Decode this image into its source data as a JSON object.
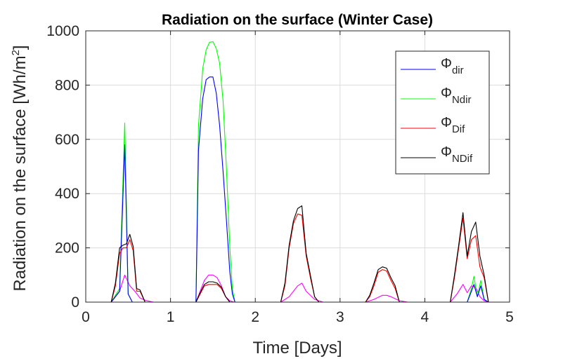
{
  "chart_data": {
    "type": "line",
    "title": "Radiation on the surface (Winter Case)",
    "xlabel": "Time [Days]",
    "ylabel_main": "Radiation on the surface [Wh/m",
    "ylabel_sup": "2",
    "ylabel_end": "]",
    "xlim": [
      0,
      5
    ],
    "ylim": [
      0,
      1000
    ],
    "xticks": [
      0,
      1,
      2,
      3,
      4,
      5
    ],
    "yticks": [
      0,
      200,
      400,
      600,
      800,
      1000
    ],
    "grid": true,
    "legend_position": "top-right",
    "series": [
      {
        "symbol": "Φ",
        "sub": "dir",
        "color": "#0000ff",
        "in_legend": true,
        "x": [
          0,
          0.3,
          0.4,
          0.46,
          0.5,
          0.55,
          0.6,
          1.3,
          1.33,
          1.38,
          1.42,
          1.46,
          1.5,
          1.54,
          1.58,
          1.62,
          1.66,
          1.7,
          1.73,
          1.76,
          4.5,
          4.55,
          4.58,
          4.62,
          4.66,
          4.7,
          4.75,
          5
        ],
        "y": [
          0,
          0,
          40,
          580,
          30,
          0,
          0,
          0,
          560,
          750,
          820,
          830,
          830,
          770,
          650,
          480,
          300,
          110,
          30,
          0,
          0,
          40,
          65,
          20,
          60,
          10,
          0,
          0
        ]
      },
      {
        "symbol": "Φ",
        "sub": "Ndir",
        "color": "#00ff00",
        "in_legend": true,
        "x": [
          0,
          0.3,
          0.4,
          0.46,
          0.5,
          0.55,
          0.6,
          1.3,
          1.33,
          1.38,
          1.42,
          1.46,
          1.5,
          1.54,
          1.58,
          1.62,
          1.66,
          1.7,
          1.73,
          1.76,
          4.5,
          4.55,
          4.58,
          4.62,
          4.66,
          4.7,
          4.75,
          5
        ],
        "y": [
          0,
          0,
          50,
          660,
          30,
          0,
          0,
          0,
          650,
          860,
          930,
          958,
          960,
          935,
          880,
          740,
          490,
          200,
          50,
          0,
          0,
          50,
          95,
          20,
          80,
          10,
          0,
          0
        ]
      },
      {
        "symbol": "Φ",
        "sub": "Dif",
        "color": "#ff0000",
        "in_legend": true,
        "x": [
          0,
          0.3,
          0.35,
          0.4,
          0.44,
          0.48,
          0.52,
          0.56,
          0.6,
          0.64,
          0.7,
          0.75,
          1.3,
          1.35,
          1.4,
          1.45,
          1.5,
          1.55,
          1.6,
          1.65,
          1.7,
          1.75,
          2.3,
          2.35,
          2.4,
          2.45,
          2.5,
          2.55,
          2.6,
          2.65,
          2.7,
          2.75,
          3.3,
          3.35,
          3.4,
          3.45,
          3.5,
          3.55,
          3.6,
          3.65,
          3.7,
          3.75,
          4.3,
          4.35,
          4.4,
          4.45,
          4.5,
          4.55,
          4.6,
          4.65,
          4.7,
          4.75,
          5
        ],
        "y": [
          0,
          0,
          60,
          180,
          200,
          200,
          230,
          190,
          40,
          40,
          0,
          0,
          0,
          30,
          60,
          65,
          65,
          65,
          50,
          20,
          0,
          0,
          0,
          60,
          200,
          290,
          325,
          320,
          170,
          90,
          20,
          0,
          0,
          20,
          60,
          110,
          120,
          115,
          80,
          50,
          0,
          0,
          0,
          90,
          200,
          310,
          160,
          230,
          245,
          130,
          90,
          0,
          0
        ]
      },
      {
        "symbol": "Φ",
        "sub": "NDif",
        "color": "#000000",
        "in_legend": true,
        "x": [
          0,
          0.3,
          0.35,
          0.4,
          0.44,
          0.48,
          0.52,
          0.56,
          0.6,
          0.64,
          0.7,
          0.75,
          1.3,
          1.35,
          1.4,
          1.45,
          1.5,
          1.55,
          1.6,
          1.65,
          1.7,
          1.75,
          2.3,
          2.35,
          2.4,
          2.45,
          2.5,
          2.55,
          2.6,
          2.65,
          2.7,
          2.75,
          3.3,
          3.35,
          3.4,
          3.45,
          3.5,
          3.55,
          3.6,
          3.65,
          3.7,
          3.75,
          4.3,
          4.35,
          4.4,
          4.45,
          4.5,
          4.55,
          4.6,
          4.65,
          4.7,
          4.75,
          5
        ],
        "y": [
          0,
          0,
          70,
          200,
          210,
          215,
          250,
          205,
          50,
          45,
          0,
          0,
          0,
          35,
          65,
          75,
          75,
          70,
          55,
          20,
          0,
          0,
          0,
          70,
          210,
          300,
          345,
          355,
          180,
          100,
          20,
          0,
          0,
          25,
          70,
          120,
          130,
          125,
          90,
          60,
          0,
          0,
          0,
          100,
          210,
          330,
          170,
          260,
          295,
          170,
          100,
          0,
          0
        ]
      },
      {
        "symbol": "",
        "sub": "",
        "color": "#ff00ff",
        "in_legend": false,
        "x": [
          0,
          0.3,
          0.4,
          0.46,
          0.52,
          0.58,
          0.64,
          0.72,
          0.8,
          1.3,
          1.35,
          1.4,
          1.45,
          1.5,
          1.55,
          1.6,
          1.65,
          1.7,
          1.75,
          2.3,
          2.4,
          2.5,
          2.55,
          2.6,
          2.7,
          2.8,
          3.3,
          3.4,
          3.5,
          3.55,
          3.6,
          3.7,
          3.8,
          4.3,
          4.38,
          4.45,
          4.5,
          4.55,
          4.6,
          4.65,
          4.7,
          4.75,
          5
        ],
        "y": [
          0,
          0,
          40,
          100,
          60,
          40,
          15,
          5,
          0,
          0,
          40,
          80,
          100,
          100,
          90,
          60,
          20,
          5,
          0,
          0,
          20,
          60,
          70,
          40,
          10,
          0,
          0,
          10,
          25,
          25,
          20,
          5,
          0,
          0,
          30,
          65,
          35,
          60,
          55,
          20,
          5,
          0,
          0
        ]
      }
    ]
  }
}
